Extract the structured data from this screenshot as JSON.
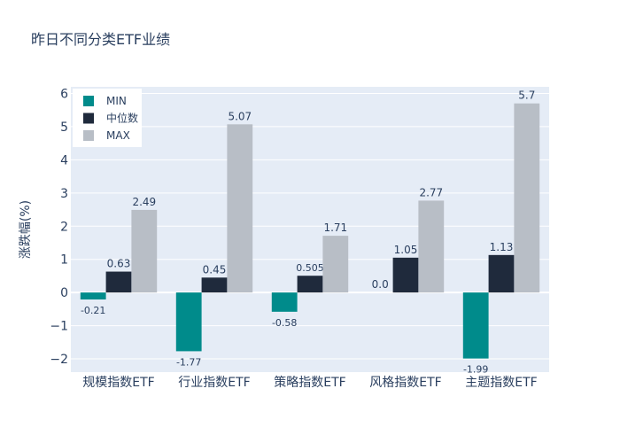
{
  "chart_data": {
    "type": "bar",
    "title": "昨日不同分类ETF业绩",
    "xlabel": "",
    "ylabel": "涨跌幅(%)",
    "categories": [
      "规模指数ETF",
      "行业指数ETF",
      "策略指数ETF",
      "风格指数ETF",
      "主题指数ETF"
    ],
    "series": [
      {
        "name": "MIN",
        "color": "#008B8B",
        "values": [
          -0.21,
          -1.77,
          -0.58,
          0.0,
          -1.99
        ],
        "labels": [
          "-0.21",
          "-1.77",
          "-0.58",
          "0.0",
          "-1.99"
        ]
      },
      {
        "name": "中位数",
        "color": "#1F2A3C",
        "values": [
          0.63,
          0.45,
          0.505,
          1.05,
          1.13
        ],
        "labels": [
          "0.63",
          "0.45",
          "0.505",
          "1.05",
          "1.13"
        ]
      },
      {
        "name": "MAX",
        "color": "#B8BEC6",
        "values": [
          2.49,
          5.07,
          1.71,
          2.77,
          5.7
        ],
        "labels": [
          "2.49",
          "5.07",
          "1.71",
          "2.77",
          "5.7"
        ]
      }
    ],
    "ylim": [
      -2.4,
      6.2
    ],
    "yticks": [
      -2,
      -1,
      0,
      1,
      2,
      3,
      4,
      5,
      6
    ],
    "ytick_labels": [
      "−2",
      "−1",
      "0",
      "1",
      "2",
      "3",
      "4",
      "5",
      "6"
    ],
    "grid": true,
    "legend_position": "top-left",
    "plot_background": "#E5ECF6"
  }
}
